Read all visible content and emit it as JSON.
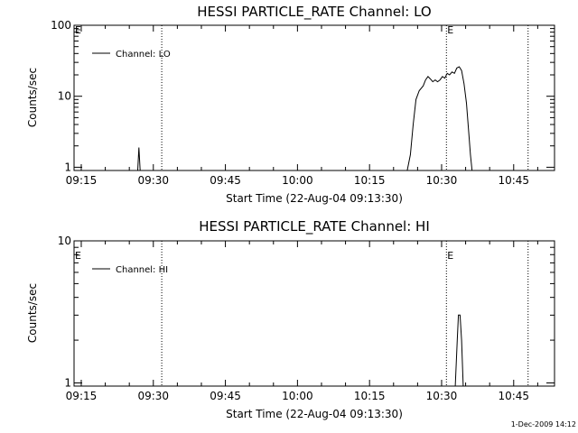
{
  "footer": {
    "timestamp": "1-Dec-2009 14:12"
  },
  "chart_data": [
    {
      "type": "line",
      "title": "HESSI PARTICLE_RATE Channel: LO",
      "xlabel": "Start Time (22-Aug-04 09:13:30)",
      "ylabel": "Counts/sec",
      "yscale": "log",
      "ylim": [
        0.9,
        100
      ],
      "xlim": [
        "09:13:30",
        "10:53:30"
      ],
      "x_ticks": [
        "09:15",
        "09:30",
        "09:45",
        "10:00",
        "10:15",
        "10:30",
        "10:45"
      ],
      "y_ticks": [
        {
          "value": 1,
          "label": "1"
        },
        {
          "value": 10,
          "label": "10"
        },
        {
          "value": 100,
          "label": "100"
        }
      ],
      "markers": [
        {
          "time": "09:13:30",
          "label": "E"
        },
        {
          "time": "10:31:00",
          "label": "E"
        }
      ],
      "vlines": [
        "09:31:45",
        "10:31:00",
        "10:48:00"
      ],
      "legend": "top-left",
      "series": [
        {
          "name": "Channel: LO",
          "segments": [
            [
              [
                "09:26:45",
                0.9
              ],
              [
                "09:27:00",
                1.9
              ],
              [
                "09:27:15",
                0.9
              ]
            ],
            [
              [
                "10:22:50",
                0.9
              ],
              [
                "10:23:30",
                1.5
              ],
              [
                "10:24:05",
                4
              ],
              [
                "10:24:40",
                9
              ],
              [
                "10:25:20",
                12
              ],
              [
                "10:26:10",
                14
              ],
              [
                "10:26:40",
                17
              ],
              [
                "10:27:10",
                19
              ],
              [
                "10:27:40",
                17.5
              ],
              [
                "10:28:10",
                16
              ],
              [
                "10:28:40",
                17
              ],
              [
                "10:29:10",
                16
              ],
              [
                "10:29:40",
                17
              ],
              [
                "10:30:10",
                19
              ],
              [
                "10:30:40",
                18
              ],
              [
                "10:31:10",
                21
              ],
              [
                "10:31:40",
                20
              ],
              [
                "10:32:10",
                22
              ],
              [
                "10:32:40",
                21
              ],
              [
                "10:33:10",
                25
              ],
              [
                "10:33:40",
                26
              ],
              [
                "10:34:10",
                23
              ],
              [
                "10:34:40",
                15
              ],
              [
                "10:35:10",
                8
              ],
              [
                "10:35:40",
                3
              ],
              [
                "10:36:00",
                1.5
              ],
              [
                "10:36:20",
                0.9
              ]
            ]
          ]
        }
      ]
    },
    {
      "type": "line",
      "title": "HESSI PARTICLE_RATE Channel: HI",
      "xlabel": "Start Time (22-Aug-04 09:13:30)",
      "ylabel": "Counts/sec",
      "yscale": "log",
      "ylim": [
        0.95,
        10
      ],
      "xlim": [
        "09:13:30",
        "10:53:30"
      ],
      "x_ticks": [
        "09:15",
        "09:30",
        "09:45",
        "10:00",
        "10:15",
        "10:30",
        "10:45"
      ],
      "y_ticks": [
        {
          "value": 1,
          "label": "1"
        },
        {
          "value": 10,
          "label": "10"
        }
      ],
      "markers": [
        {
          "time": "09:13:30",
          "label": "E"
        },
        {
          "time": "10:31:00",
          "label": "E"
        }
      ],
      "vlines": [
        "09:31:45",
        "10:31:00",
        "10:48:00"
      ],
      "legend": "top-left",
      "series": [
        {
          "name": "Channel: HI",
          "segments": [
            [
              [
                "10:32:50",
                0.95
              ],
              [
                "10:33:15",
                2.0
              ],
              [
                "10:33:30",
                3.0
              ],
              [
                "10:33:50",
                3.0
              ],
              [
                "10:34:10",
                2.0
              ],
              [
                "10:34:30",
                0.95
              ]
            ]
          ]
        }
      ]
    }
  ]
}
